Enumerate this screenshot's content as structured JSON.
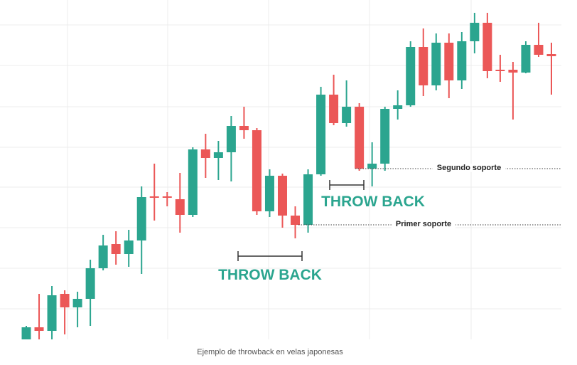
{
  "chart_data": {
    "type": "candlestick",
    "open": [
      0,
      3.4,
      2.4,
      12.8,
      9,
      11.4,
      20,
      26.8,
      24,
      27.8,
      40.2,
      40.2,
      39.4,
      35,
      53.4,
      51,
      52.6,
      60,
      58.8,
      36,
      46,
      34.8,
      32.2,
      46.4,
      68.8,
      60.8,
      65.4,
      48,
      49.4,
      64.8,
      65.8,
      82.2,
      71.4,
      83.4,
      72.8,
      83.8,
      89,
      75.8,
      75.8,
      75,
      82.8,
      80.2
    ],
    "high": [
      3.8,
      12.8,
      15,
      13.8,
      13.4,
      22.4,
      29.4,
      30.4,
      30.8,
      43,
      49.4,
      41.4,
      46.8,
      54,
      57.8,
      55.8,
      62.8,
      65.4,
      59.4,
      47.8,
      46.6,
      37.4,
      47.8,
      71,
      74.4,
      72.8,
      66.4,
      55.4,
      65.4,
      70,
      83.8,
      87.4,
      86,
      86,
      86.4,
      91.8,
      91.8,
      80,
      78,
      83.8,
      89,
      83.4
    ],
    "low": [
      0,
      0,
      0,
      1.4,
      3.4,
      3.8,
      19.4,
      21,
      20.4,
      18.4,
      33.4,
      37.4,
      30,
      34.4,
      45.4,
      44.8,
      44.4,
      56.4,
      35,
      34.4,
      31.4,
      28.4,
      30,
      46,
      60.2,
      59.8,
      47.4,
      43,
      47.4,
      61.8,
      65.4,
      68.4,
      70,
      67.8,
      70.4,
      80.4,
      73.4,
      72.4,
      61.8,
      74.8,
      79.4,
      68.8
    ],
    "close": [
      3.4,
      2.4,
      12.4,
      9,
      11.4,
      20,
      26.4,
      24,
      27.8,
      40,
      39.8,
      39.8,
      35,
      53.4,
      51,
      52.6,
      60,
      58.8,
      36,
      46,
      34.8,
      32.2,
      46.4,
      68.8,
      60.8,
      65.4,
      48,
      49.4,
      64.8,
      65.8,
      82.2,
      71.4,
      83.4,
      72.8,
      83.8,
      89,
      75.4,
      75.4,
      75,
      82.8,
      80,
      79.6
    ],
    "up_color": "#2ba58f",
    "down_color": "#eb5757",
    "ylim": [
      0,
      96
    ],
    "grid": true,
    "annotations": [
      {
        "label": "Segundo soporte",
        "value": 48
      },
      {
        "label": "Primer soporte",
        "value": 32.2
      }
    ],
    "throwback_labels": [
      "THROW BACK",
      "THROW BACK"
    ],
    "caption": "Ejemplo de throwback en velas japonesas"
  }
}
